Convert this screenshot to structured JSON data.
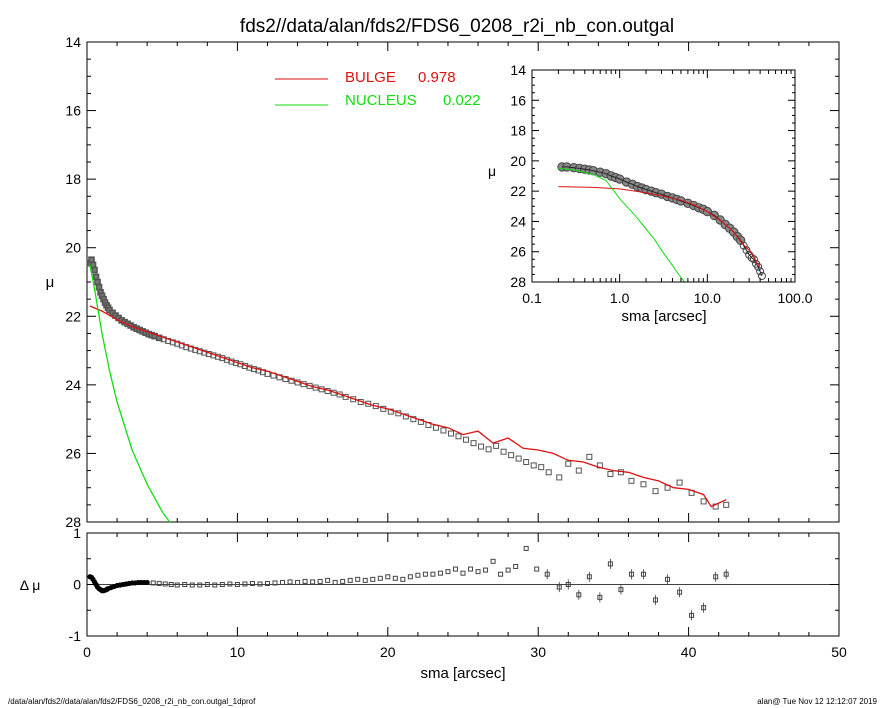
{
  "title": "fds2//data/alan/fds2/FDS6_0208_r2i_nb_con.outgal",
  "footer": {
    "left": "/data/alan/fds2//data/alan/fds2/FDS6_0208_r2i_nb_con.outgal_1dprof",
    "right": "alan@  Tue Nov 12 12:12:07 2019"
  },
  "colors": {
    "bulge": "#dd1111",
    "nucleus": "#11dd11",
    "data": "#555555",
    "axes": "#000000"
  },
  "chart_data": [
    {
      "id": "main",
      "type": "line",
      "xlabel": "",
      "ylabel": "μ",
      "xlim": [
        0,
        50
      ],
      "ylim": [
        28,
        14
      ],
      "yticks": [
        "14",
        "16",
        "18",
        "20",
        "22",
        "24",
        "26",
        "28"
      ],
      "legend": {
        "placement": "top-center",
        "entries": [
          {
            "label": "BULGE",
            "value": "0.978",
            "color": "#dd1111"
          },
          {
            "label": "NUCLEUS",
            "value": "0.022",
            "color": "#11dd11"
          }
        ]
      },
      "series": [
        {
          "name": "BULGE",
          "color": "#dd1111",
          "x": [
            0.2,
            1,
            2,
            3,
            4,
            5,
            6,
            7,
            8,
            9,
            10,
            11,
            12,
            13,
            14,
            15,
            16,
            17,
            18,
            19,
            20,
            21,
            22,
            23,
            24,
            25,
            26,
            27,
            28,
            29,
            30,
            31,
            32,
            33,
            34,
            35,
            36,
            37,
            38,
            39,
            40,
            41,
            41.5,
            42,
            42.5
          ],
          "y": [
            21.7,
            21.85,
            22.1,
            22.3,
            22.45,
            22.6,
            22.75,
            22.9,
            23.05,
            23.2,
            23.35,
            23.5,
            23.6,
            23.75,
            23.9,
            24.05,
            24.15,
            24.3,
            24.45,
            24.6,
            24.7,
            24.85,
            25.0,
            25.15,
            25.25,
            25.45,
            25.35,
            25.7,
            25.55,
            25.85,
            25.9,
            26.0,
            26.2,
            26.25,
            26.4,
            26.5,
            26.55,
            26.7,
            26.8,
            27.0,
            27.05,
            27.2,
            27.55,
            27.45,
            27.35
          ]
        },
        {
          "name": "NUCLEUS",
          "color": "#11dd11",
          "x": [
            0.2,
            0.5,
            1,
            1.5,
            2,
            2.5,
            3,
            3.5,
            4,
            4.5,
            5,
            5.5
          ],
          "y": [
            20.5,
            21.2,
            22.5,
            23.6,
            24.5,
            25.2,
            25.9,
            26.4,
            26.9,
            27.3,
            27.7,
            28.0
          ]
        },
        {
          "name": "",
          "type": "scatter",
          "marker": "square",
          "color": "#555555",
          "x": [
            0.2,
            0.3,
            0.4,
            0.5,
            0.6,
            0.7,
            0.8,
            0.9,
            1.0,
            1.1,
            1.2,
            1.3,
            1.4,
            1.5,
            1.7,
            1.9,
            2.1,
            2.3,
            2.5,
            2.7,
            2.9,
            3.1,
            3.3,
            3.5,
            3.7,
            3.9,
            4.1,
            4.3,
            4.5,
            4.8,
            5.1,
            5.4,
            5.7,
            6.0,
            6.3,
            6.6,
            6.9,
            7.2,
            7.5,
            7.8,
            8.1,
            8.4,
            8.7,
            9.0,
            9.3,
            9.6,
            9.9,
            10.2,
            10.5,
            10.8,
            11.1,
            11.4,
            11.7,
            12.0,
            12.4,
            12.8,
            13.2,
            13.6,
            14.0,
            14.4,
            14.8,
            15.2,
            15.6,
            16.0,
            16.4,
            16.8,
            17.2,
            17.7,
            18.2,
            18.7,
            19.2,
            19.7,
            20.2,
            20.7,
            21.2,
            21.7,
            22.2,
            22.7,
            23.2,
            23.7,
            24.2,
            24.7,
            25.2,
            25.7,
            26.2,
            26.7,
            27.2,
            27.7,
            28.2,
            28.7,
            29.2,
            29.7,
            30.2,
            30.7,
            31.4,
            32.0,
            32.7,
            33.4,
            34.1,
            34.8,
            35.5,
            36.2,
            37.0,
            37.8,
            38.6,
            39.4,
            40.2,
            41.0,
            41.8,
            42.5
          ],
          "y": [
            20.45,
            20.35,
            20.5,
            20.65,
            20.85,
            21.0,
            21.15,
            21.3,
            21.4,
            21.5,
            21.6,
            21.68,
            21.75,
            21.82,
            21.9,
            21.98,
            22.05,
            22.12,
            22.17,
            22.22,
            22.27,
            22.32,
            22.36,
            22.4,
            22.44,
            22.48,
            22.52,
            22.55,
            22.58,
            22.63,
            22.67,
            22.72,
            22.76,
            22.8,
            22.85,
            22.9,
            22.94,
            22.98,
            23.02,
            23.06,
            23.1,
            23.14,
            23.18,
            23.22,
            23.27,
            23.32,
            23.36,
            23.4,
            23.45,
            23.5,
            23.54,
            23.58,
            23.63,
            23.68,
            23.73,
            23.78,
            23.83,
            23.88,
            23.93,
            23.98,
            24.03,
            24.08,
            24.13,
            24.18,
            24.23,
            24.28,
            24.35,
            24.42,
            24.5,
            24.55,
            24.62,
            24.7,
            24.78,
            24.83,
            24.92,
            25.0,
            25.08,
            25.17,
            25.25,
            25.33,
            25.42,
            25.5,
            25.6,
            25.7,
            25.8,
            25.88,
            25.78,
            25.95,
            26.05,
            26.15,
            26.25,
            26.35,
            26.4,
            26.55,
            26.7,
            26.3,
            26.5,
            26.1,
            26.35,
            26.6,
            26.55,
            26.8,
            26.9,
            27.1,
            27.0,
            26.85,
            27.15,
            27.4,
            27.55,
            27.5
          ]
        }
      ]
    },
    {
      "id": "residual",
      "type": "scatter",
      "xlabel": "sma [arcsec]",
      "ylabel": "Δ μ",
      "xlim": [
        0,
        50
      ],
      "ylim": [
        -1,
        1
      ],
      "xticks": [
        "0",
        "10",
        "20",
        "30",
        "40",
        "50"
      ],
      "yticks": [
        "-1",
        "0",
        "1"
      ],
      "series": [
        {
          "name": "",
          "color": "#000000",
          "x": [
            0.2,
            0.3,
            0.4,
            0.5,
            0.6,
            0.7,
            0.8,
            0.9,
            1.0,
            1.1,
            1.2,
            1.3,
            1.4,
            1.6,
            1.8,
            2.0,
            2.2,
            2.4,
            2.6,
            2.8,
            3.0,
            3.2,
            3.4,
            3.6,
            3.8,
            4.0,
            4.4,
            4.8,
            5.2,
            5.6,
            6.0,
            6.5,
            7.0,
            7.5,
            8.0,
            8.5,
            9.0,
            9.5,
            10.0,
            10.5,
            11.0,
            11.5,
            12.0,
            12.5,
            13.0,
            13.5,
            14.0,
            14.5,
            15.0,
            15.5,
            16.0,
            16.5,
            17.0,
            17.5,
            18.0,
            18.5,
            19.0,
            19.5,
            20.0,
            20.5,
            21.0,
            21.5,
            22.0,
            22.5,
            23.0,
            23.5,
            24.0,
            24.5,
            25.0,
            25.5,
            26.0,
            26.5,
            27.0,
            27.5,
            28.0,
            28.5,
            29.2,
            29.9,
            30.6,
            31.4,
            32.0,
            32.7,
            33.4,
            34.1,
            34.8,
            35.5,
            36.2,
            37.0,
            37.8,
            38.6,
            39.4,
            40.2,
            41.0,
            41.8,
            42.5
          ],
          "y": [
            0.15,
            0.14,
            0.1,
            0.05,
            0.0,
            -0.05,
            -0.08,
            -0.1,
            -0.12,
            -0.12,
            -0.11,
            -0.1,
            -0.08,
            -0.06,
            -0.04,
            -0.02,
            -0.01,
            0.0,
            0.01,
            0.02,
            0.03,
            0.03,
            0.04,
            0.04,
            0.04,
            0.04,
            0.03,
            0.02,
            0.01,
            0.0,
            -0.01,
            0.0,
            -0.01,
            -0.01,
            0.0,
            -0.01,
            0.0,
            0.01,
            0.0,
            0.01,
            0.02,
            0.01,
            0.02,
            0.03,
            0.04,
            0.05,
            0.04,
            0.06,
            0.05,
            0.06,
            0.08,
            0.04,
            0.06,
            0.08,
            0.1,
            0.08,
            0.1,
            0.12,
            0.15,
            0.12,
            0.1,
            0.15,
            0.18,
            0.2,
            0.2,
            0.22,
            0.25,
            0.3,
            0.22,
            0.3,
            0.25,
            0.28,
            0.45,
            0.2,
            0.28,
            0.35,
            0.7,
            0.3,
            0.2,
            -0.05,
            0.0,
            -0.2,
            0.15,
            -0.25,
            0.4,
            -0.1,
            0.2,
            0.2,
            -0.3,
            0.1,
            -0.15,
            -0.6,
            -0.45,
            0.15,
            0.2
          ]
        }
      ]
    },
    {
      "id": "inset",
      "type": "line",
      "xlabel": "sma [arcsec]",
      "ylabel": "μ",
      "xscale": "log",
      "xlim": [
        0.1,
        100
      ],
      "ylim": [
        28,
        14
      ],
      "xticks": [
        "0.1",
        "1.0",
        "10.0",
        "100.0"
      ],
      "yticks": [
        "14",
        "16",
        "18",
        "20",
        "22",
        "24",
        "26",
        "28"
      ],
      "series": [
        {
          "name": "BULGE",
          "color": "#dd1111",
          "x": [
            0.2,
            0.5,
            1.0,
            2.0,
            3.0,
            5.0,
            7.0,
            10.0,
            15.0,
            20.0,
            25.0,
            30.0,
            35.0,
            40.0
          ],
          "y": [
            21.7,
            21.75,
            21.85,
            22.1,
            22.3,
            22.6,
            22.9,
            23.35,
            24.05,
            24.7,
            25.45,
            25.9,
            26.5,
            27.05
          ]
        },
        {
          "name": "NUCLEUS",
          "color": "#11dd11",
          "x": [
            0.2,
            0.3,
            0.5,
            0.7,
            1.0,
            1.5,
            2.0,
            2.5,
            3.0,
            4.0,
            5.0,
            5.5
          ],
          "y": [
            20.5,
            20.6,
            20.9,
            21.3,
            22.5,
            23.6,
            24.5,
            25.2,
            25.9,
            26.9,
            27.7,
            28.0
          ]
        },
        {
          "name": "",
          "type": "scatter",
          "marker": "circle",
          "color": "#555555",
          "x": [
            0.22,
            0.25,
            0.3,
            0.35,
            0.4,
            0.45,
            0.5,
            0.6,
            0.7,
            0.8,
            0.9,
            1.0,
            1.2,
            1.4,
            1.6,
            1.8,
            2.0,
            2.3,
            2.6,
            3.0,
            3.5,
            4.0,
            4.5,
            5.0,
            6.0,
            7.0,
            8.0,
            9.0,
            10.0,
            12.0,
            14.0,
            16.0,
            18.0,
            20.0,
            22.0,
            24.0,
            26.0,
            28.0,
            30.0,
            32.0,
            34.0,
            36.0,
            38.0,
            40.0,
            42.0
          ],
          "y": [
            20.4,
            20.4,
            20.45,
            20.5,
            20.55,
            20.6,
            20.65,
            20.75,
            20.85,
            21.0,
            21.1,
            21.2,
            21.4,
            21.55,
            21.7,
            21.8,
            21.9,
            22.0,
            22.1,
            22.2,
            22.35,
            22.45,
            22.55,
            22.65,
            22.8,
            22.95,
            23.1,
            23.2,
            23.35,
            23.6,
            23.9,
            24.2,
            24.45,
            24.7,
            25.0,
            25.25,
            25.6,
            25.9,
            26.2,
            26.4,
            26.5,
            26.8,
            27.0,
            27.3,
            27.6
          ]
        }
      ]
    }
  ]
}
